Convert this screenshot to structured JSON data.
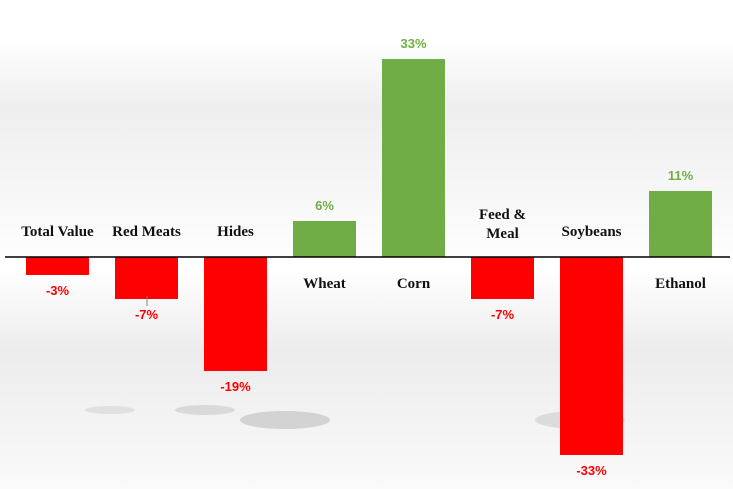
{
  "chart_data": {
    "type": "bar",
    "categories": [
      "Total Value",
      "Red Meats",
      "Hides",
      "Wheat",
      "Corn",
      "Feed & Meal",
      "Soybeans",
      "Ethanol"
    ],
    "values": [
      -3,
      -7,
      -19,
      6,
      33,
      -7,
      -33,
      11
    ],
    "data_labels": [
      "-3%",
      "-7%",
      "-19%",
      "6%",
      "33%",
      "-7%",
      "-33%",
      "11%"
    ],
    "unit": "%",
    "ylim": [
      -35,
      35
    ],
    "grid": false,
    "legend": "none",
    "colors": {
      "positive": "#70ad47",
      "negative": "#ff0000",
      "axis": "#000000"
    }
  }
}
